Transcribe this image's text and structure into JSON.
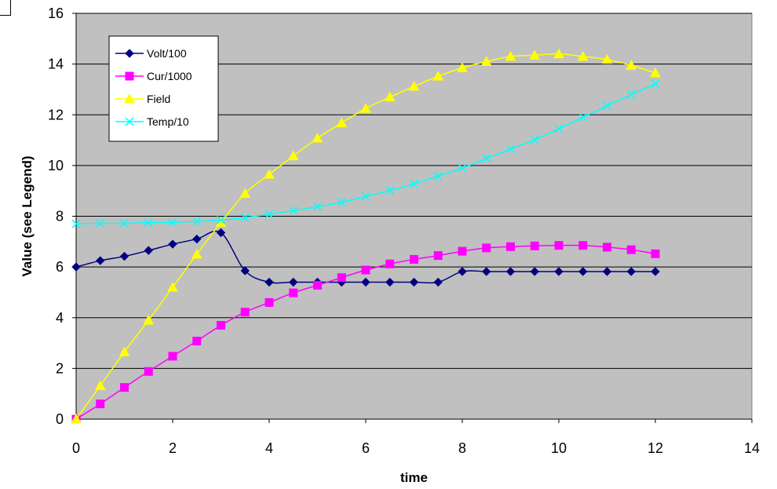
{
  "chart_data": {
    "type": "line",
    "title": "",
    "xlabel": "time",
    "ylabel": "Value (see Legend)",
    "xlim": [
      0,
      14
    ],
    "ylim": [
      0,
      16
    ],
    "x_ticks": [
      0,
      2,
      4,
      6,
      8,
      10,
      12,
      14
    ],
    "y_ticks": [
      0,
      2,
      4,
      6,
      8,
      10,
      12,
      14,
      16
    ],
    "grid": "horizontal",
    "plot_background": "#c0c0c0",
    "legend_position": "top-left",
    "x": [
      0,
      0.5,
      1,
      1.5,
      2,
      2.5,
      3,
      3.5,
      4,
      4.5,
      5,
      5.5,
      6,
      6.5,
      7,
      7.5,
      8,
      8.5,
      9,
      9.5,
      10,
      10.5,
      11,
      11.5,
      12
    ],
    "series": [
      {
        "name": "Volt/100",
        "color": "#000080",
        "marker": "diamond",
        "values": [
          6.0,
          6.25,
          6.42,
          6.65,
          6.9,
          7.1,
          7.35,
          5.85,
          5.4,
          5.4,
          5.4,
          5.4,
          5.4,
          5.4,
          5.4,
          5.4,
          5.82,
          5.82,
          5.82,
          5.82,
          5.82,
          5.82,
          5.82,
          5.82,
          5.82
        ]
      },
      {
        "name": "Cur/1000",
        "color": "#ff00ff",
        "marker": "square",
        "values": [
          0.0,
          0.6,
          1.25,
          1.88,
          2.48,
          3.08,
          3.7,
          4.22,
          4.6,
          4.98,
          5.28,
          5.58,
          5.88,
          6.12,
          6.3,
          6.45,
          6.62,
          6.75,
          6.8,
          6.83,
          6.85,
          6.85,
          6.78,
          6.68,
          6.52
        ]
      },
      {
        "name": "Field",
        "color": "#ffff00",
        "marker": "triangle",
        "values": [
          0.0,
          1.32,
          2.65,
          3.9,
          5.2,
          6.5,
          7.75,
          8.9,
          9.65,
          10.38,
          11.08,
          11.68,
          12.25,
          12.7,
          13.12,
          13.52,
          13.85,
          14.1,
          14.3,
          14.35,
          14.4,
          14.3,
          14.18,
          13.95,
          13.65
        ]
      },
      {
        "name": "Temp/10",
        "color": "#00ffff",
        "marker": "x",
        "values": [
          7.7,
          7.72,
          7.72,
          7.75,
          7.76,
          7.8,
          7.85,
          7.95,
          8.08,
          8.22,
          8.38,
          8.55,
          8.78,
          9.02,
          9.28,
          9.58,
          9.9,
          10.28,
          10.65,
          11.02,
          11.45,
          11.9,
          12.35,
          12.8,
          13.22
        ]
      }
    ]
  }
}
